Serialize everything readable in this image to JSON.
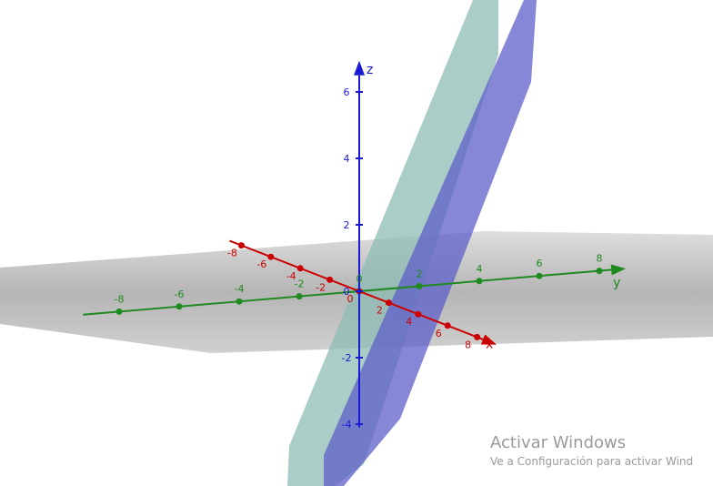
{
  "axes": {
    "x": {
      "name": "x",
      "color": "#cc0000",
      "ticks": [
        {
          "label": "-8"
        },
        {
          "label": "-6"
        },
        {
          "label": "-4"
        },
        {
          "label": "-2"
        },
        {
          "label": "0"
        },
        {
          "label": "2"
        },
        {
          "label": "4"
        },
        {
          "label": "6"
        },
        {
          "label": "8"
        }
      ]
    },
    "y": {
      "name": "y",
      "color": "#1f8a1f",
      "ticks": [
        {
          "label": "-8"
        },
        {
          "label": "-6"
        },
        {
          "label": "-4"
        },
        {
          "label": "-2"
        },
        {
          "label": "0"
        },
        {
          "label": "2"
        },
        {
          "label": "4"
        },
        {
          "label": "6"
        },
        {
          "label": "8"
        }
      ]
    },
    "z": {
      "name": "z",
      "color": "#1a1ad6",
      "ticks": [
        {
          "label": "-4"
        },
        {
          "label": "-2"
        },
        {
          "label": "0"
        },
        {
          "label": "2"
        },
        {
          "label": "4"
        },
        {
          "label": "6"
        }
      ]
    }
  },
  "planes": {
    "xy_plane_color": "#9b9b9b",
    "plane_1_color": "#8fbcb4",
    "plane_2_color": "#5d5fc8"
  },
  "watermark": {
    "title": "Activar Windows",
    "subtitle": "Ve a Configuración para activar Wind"
  }
}
